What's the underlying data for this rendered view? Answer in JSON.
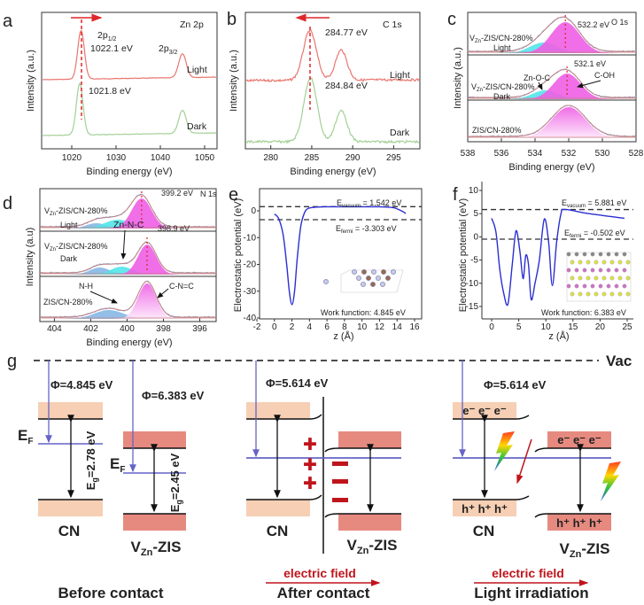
{
  "panel_labels": {
    "a": "a",
    "b": "b",
    "c": "c",
    "d": "d",
    "e": "e",
    "f": "f",
    "g": "g"
  },
  "colors": {
    "light": "#e8766f",
    "dark": "#a3d095",
    "magenta": "#ee5ee4",
    "cyan": "#52e6ea",
    "blue": "#86b7e6",
    "pot": "#2a2fd0",
    "cn_band": "#f6cfb4",
    "zis_band": "#e68a80",
    "level": "#6464c8",
    "field": "#c0141c"
  },
  "chart_data": [
    {
      "panel": "a",
      "type": "line",
      "title": "Zn 2p",
      "xlabel": "Binding energy (eV)",
      "ylabel": "Intensity (a.u.)",
      "xlim": [
        1013.2,
        1052.8
      ],
      "xticks": [
        "1020",
        "1030",
        "1040",
        "1050"
      ],
      "series": [
        {
          "name": "Light",
          "peaks": [
            {
              "center": 1022.1,
              "width": 0.75,
              "height": 55
            },
            {
              "center": 1045.0,
              "width": 0.85,
              "height": 27
            }
          ]
        },
        {
          "name": "Dark",
          "peaks": [
            {
              "center": 1021.8,
              "width": 0.75,
              "height": 58
            },
            {
              "center": 1045.0,
              "width": 0.85,
              "height": 26
            }
          ]
        }
      ],
      "annotations": {
        "peak1": "2p",
        "peak1_sub": "1/2",
        "peak1_value": "1022.1 eV",
        "peak2": "2p",
        "peak2_sub": "3/2",
        "dark_value": "1021.8 eV"
      }
    },
    {
      "panel": "b",
      "type": "line",
      "title": "C 1s",
      "xlabel": "Binding energy (eV)",
      "ylabel": "Intensity (a.u.)",
      "xlim": [
        276.9,
        298.2
      ],
      "xticks": [
        "280",
        "285",
        "290",
        "295"
      ],
      "series": [
        {
          "name": "Light",
          "peaks": [
            {
              "center": 284.77,
              "width": 0.8,
              "height": 56
            },
            {
              "center": 288.6,
              "width": 0.7,
              "height": 34
            }
          ]
        },
        {
          "name": "Dark",
          "peaks": [
            {
              "center": 284.84,
              "width": 0.8,
              "height": 72
            },
            {
              "center": 288.6,
              "width": 0.7,
              "height": 35
            }
          ]
        }
      ],
      "annotations": {
        "light_value": "284.77 eV",
        "dark_value": "284.84 eV"
      }
    },
    {
      "panel": "c",
      "type": "area",
      "title": "O 1s",
      "xlabel": "Binding energy (eV)",
      "ylabel": "Intensity (a.u.)",
      "xlim": [
        538,
        528
      ],
      "xticks": [
        "538",
        "536",
        "534",
        "532",
        "530",
        "528"
      ],
      "series": [
        {
          "name": "VZn-ZIS/CN-280% Light",
          "components": [
            {
              "label": "Zn-O-C",
              "center": 533.5,
              "width": 0.8,
              "height": 12
            },
            {
              "label": "C-OH",
              "center": 532.2,
              "width": 0.85,
              "height": 35
            }
          ]
        },
        {
          "name": "VZn-ZIS/CN-280% Dark",
          "components": [
            {
              "label": "Zn-O-C",
              "center": 533.4,
              "width": 0.75,
              "height": 10
            },
            {
              "label": "C-OH",
              "center": 532.1,
              "width": 0.8,
              "height": 29
            }
          ]
        },
        {
          "name": "ZIS/CN-280%",
          "components": [
            {
              "label": "C-OH",
              "center": 532.0,
              "width": 1.0,
              "height": 35
            }
          ]
        }
      ],
      "annotations": {
        "top_value": "532.2 eV",
        "mid_value": "532.1 eV",
        "zn_o_c": "Zn-O-C",
        "c_oh": "C-OH"
      }
    },
    {
      "panel": "d",
      "type": "area",
      "title": "N 1s",
      "xlabel": "Binding energy (eV)",
      "ylabel": "Intensity (a.u)",
      "xlim": [
        404.8,
        395.1
      ],
      "xticks": [
        "404",
        "402",
        "400",
        "398",
        "396"
      ],
      "series": [
        {
          "name": "VZn-ZIS/CN-280% Light",
          "components": [
            {
              "label": "N-H",
              "center": 401.7,
              "width": 0.55,
              "height": 6
            },
            {
              "label": "Zn-N-C",
              "center": 400.5,
              "width": 0.75,
              "height": 10
            },
            {
              "label": "C-N=C",
              "center": 399.2,
              "width": 0.55,
              "height": 34
            }
          ]
        },
        {
          "name": "VZn-ZIS/CN-280% Dark",
          "components": [
            {
              "label": "N-H",
              "center": 401.5,
              "width": 0.55,
              "height": 8
            },
            {
              "label": "Zn-N-C",
              "center": 400.3,
              "width": 0.6,
              "height": 9
            },
            {
              "label": "C-N=C",
              "center": 398.9,
              "width": 0.5,
              "height": 34
            }
          ]
        },
        {
          "name": "ZIS/CN-280%",
          "components": [
            {
              "label": "N-H",
              "center": 401.0,
              "width": 0.8,
              "height": 10
            },
            {
              "label": "C-N=C",
              "center": 398.9,
              "width": 0.5,
              "height": 40
            }
          ]
        }
      ],
      "annotations": {
        "top_value": "399.2 eV",
        "mid_value": "398.9 eV",
        "zn_n_c": "Zn-N-C",
        "n_h": "N-H",
        "c_n_c": "C-N=C"
      }
    },
    {
      "panel": "e",
      "type": "line",
      "xlabel": "z (Å)",
      "ylabel": "Electrostatic potential (eV)",
      "xlim": [
        -2,
        17
      ],
      "ylim": [
        -40,
        3
      ],
      "xticks": [
        "-2",
        "0",
        "2",
        "4",
        "6",
        "8",
        "10",
        "12",
        "14",
        "16"
      ],
      "yticks": [
        "0",
        "-10",
        "-20",
        "-30",
        "-40"
      ],
      "x": [
        0,
        0.5,
        1,
        1.4,
        1.7,
        2,
        2.3,
        2.6,
        3,
        3.4,
        3.8,
        4.5,
        6,
        8,
        10,
        12,
        13.5,
        14.5,
        15
      ],
      "y": [
        -1.2,
        -3,
        -9,
        -20,
        -30,
        -35,
        -30,
        -18,
        -6,
        -1,
        0.8,
        1.3,
        1.5,
        1.5,
        1.5,
        1.5,
        1.2,
        0,
        -1
      ],
      "e_vacuum": 1.542,
      "e_fermi": -3.303,
      "annotations": {
        "vac_label": "E",
        "vac_sub": "vacuum",
        "vac_value": " = 1.542 eV",
        "fermi_label": "E",
        "fermi_sub": "fermi",
        "fermi_value": " = -3.303 eV",
        "work_function": "Work function: 4.845 eV"
      }
    },
    {
      "panel": "f",
      "type": "line",
      "xlabel": "z (Å)",
      "ylabel": "Electrostatic potential (eV)",
      "xlim": [
        -2,
        27
      ],
      "ylim": [
        -17.5,
        10
      ],
      "xticks": [
        "0",
        "5",
        "10",
        "15",
        "20",
        "25"
      ],
      "yticks": [
        "10",
        "5",
        "0",
        "-5",
        "-10",
        "-15"
      ],
      "x": [
        0,
        0.8,
        1.5,
        2.2,
        3,
        3.8,
        4.5,
        5.2,
        5.8,
        6.3,
        6.8,
        7.3,
        8,
        8.8,
        9.7,
        10.5,
        11.2,
        12,
        12.8,
        13.5,
        18,
        24.5
      ],
      "y": [
        4,
        1,
        -7,
        -12,
        -14.5,
        -6,
        1.3,
        -3,
        -9,
        -4,
        -6,
        -13.5,
        -10,
        -5,
        3.8,
        -1,
        -10.5,
        -1,
        5,
        5.9,
        5,
        4
      ],
      "e_vacuum": 5.881,
      "e_fermi": -0.502,
      "annotations": {
        "vac_label": "E",
        "vac_sub": "vacuum",
        "vac_value": " = 5.881 eV",
        "fermi_label": "E",
        "fermi_sub": "fermi",
        "fermi_value": " = -0.502 eV",
        "work_function": "Work function: 6.383 eV"
      }
    }
  ],
  "spectra_labels": {
    "light": "Light",
    "dark": "Dark",
    "v": "V",
    "zn": "Zn",
    "zis_cn": "-ZIS/CN-280%",
    "zis_cn_plain": "ZIS/CN-280%"
  },
  "diagram": {
    "vac": "Vac",
    "phi_cn": "Φ=4.845 eV",
    "phi_zis": "Φ=6.383 eV",
    "phi_contact": "Φ=5.614 eV",
    "phi_light": "Φ=5.614 eV",
    "ef": "E",
    "ef_sub": "F",
    "eg": "E",
    "eg_sub": "g",
    "eg_cn": "=2.78 eV",
    "eg_zis": "=2.45 eV",
    "cn": "CN",
    "v": "V",
    "zn": "Zn",
    "zis": "-ZIS",
    "electrons": "e⁻ e⁻ e⁻",
    "holes": "h⁺ h⁺ h⁺",
    "electric_field": "electric field",
    "before": "Before contact",
    "after": "After contact",
    "light": "Light irradiation",
    "plus": "✚",
    "minus": "▬"
  }
}
